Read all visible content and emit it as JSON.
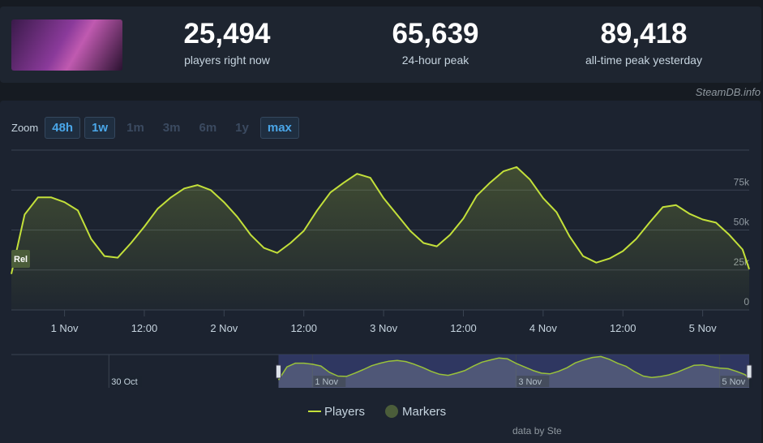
{
  "header": {
    "stats": [
      {
        "value": "25,494",
        "label": "players right now"
      },
      {
        "value": "65,639",
        "label": "24-hour peak"
      },
      {
        "value": "89,418",
        "label": "all-time peak yesterday"
      }
    ],
    "watermark": "SteamDB.info"
  },
  "zoom": {
    "label": "Zoom",
    "buttons": [
      {
        "label": "48h",
        "enabled": true
      },
      {
        "label": "1w",
        "enabled": true
      },
      {
        "label": "1m",
        "enabled": false
      },
      {
        "label": "3m",
        "enabled": false
      },
      {
        "label": "6m",
        "enabled": false
      },
      {
        "label": "1y",
        "enabled": false
      },
      {
        "label": "max",
        "enabled": true
      }
    ]
  },
  "chart_data": [
    {
      "type": "line",
      "x": [
        "31 Oct 16:00",
        "31 Oct 18:00",
        "31 Oct 20:00",
        "31 Oct 22:00",
        "1 Nov 00:00",
        "1 Nov 02:00",
        "1 Nov 04:00",
        "1 Nov 06:00",
        "1 Nov 08:00",
        "1 Nov 10:00",
        "1 Nov 12:00",
        "1 Nov 14:00",
        "1 Nov 16:00",
        "1 Nov 18:00",
        "1 Nov 20:00",
        "1 Nov 22:00",
        "2 Nov 00:00",
        "2 Nov 02:00",
        "2 Nov 04:00",
        "2 Nov 06:00",
        "2 Nov 08:00",
        "2 Nov 10:00",
        "2 Nov 12:00",
        "2 Nov 14:00",
        "2 Nov 16:00",
        "2 Nov 18:00",
        "2 Nov 20:00",
        "2 Nov 22:00",
        "3 Nov 00:00",
        "3 Nov 02:00",
        "3 Nov 04:00",
        "3 Nov 06:00",
        "3 Nov 08:00",
        "3 Nov 10:00",
        "3 Nov 12:00",
        "3 Nov 14:00",
        "3 Nov 16:00",
        "3 Nov 18:00",
        "3 Nov 20:00",
        "3 Nov 22:00",
        "4 Nov 00:00",
        "4 Nov 02:00",
        "4 Nov 04:00",
        "4 Nov 06:00",
        "4 Nov 08:00",
        "4 Nov 10:00",
        "4 Nov 12:00",
        "4 Nov 14:00",
        "4 Nov 16:00",
        "4 Nov 18:00",
        "4 Nov 20:00",
        "4 Nov 22:00",
        "5 Nov 00:00",
        "5 Nov 02:00",
        "5 Nov 04:00",
        "5 Nov 06:00",
        "5 Nov 07:00"
      ],
      "series": [
        {
          "name": "Players",
          "color": "#c3e03a",
          "values": [
            22500,
            59700,
            70400,
            70400,
            67400,
            62300,
            44400,
            33700,
            32700,
            41900,
            52100,
            63300,
            70400,
            76000,
            78100,
            75000,
            67400,
            58200,
            47000,
            38800,
            35700,
            41900,
            49500,
            62300,
            73500,
            79600,
            85200,
            82700,
            69900,
            59700,
            49500,
            41900,
            39800,
            47000,
            57200,
            71400,
            79600,
            86700,
            89400,
            81600,
            69900,
            61200,
            45900,
            33700,
            29600,
            32200,
            36800,
            44400,
            54600,
            64300,
            65600,
            60200,
            56600,
            54600,
            47000,
            37800,
            25500
          ]
        }
      ],
      "markers": {
        "name": "Markers",
        "color": "#4b5d3a",
        "points": [
          {
            "x": "31 Oct 16:00",
            "text": "Rel"
          }
        ]
      },
      "xlim": [
        "31 Oct 16:00",
        "5 Nov 07:00"
      ],
      "xticks": [
        {
          "value": "1 Nov 00:00",
          "label": "1 Nov"
        },
        {
          "value": "1 Nov 12:00",
          "label": "12:00"
        },
        {
          "value": "2 Nov 00:00",
          "label": "2 Nov"
        },
        {
          "value": "2 Nov 12:00",
          "label": "12:00"
        },
        {
          "value": "3 Nov 00:00",
          "label": "3 Nov"
        },
        {
          "value": "3 Nov 12:00",
          "label": "12:00"
        },
        {
          "value": "4 Nov 00:00",
          "label": "4 Nov"
        },
        {
          "value": "4 Nov 12:00",
          "label": "12:00"
        },
        {
          "value": "5 Nov 00:00",
          "label": "5 Nov"
        }
      ],
      "ylim": [
        0,
        100000
      ],
      "yticks": [
        0,
        {
          "value": 25000,
          "label": "25k"
        },
        {
          "value": 50000,
          "label": "50k"
        },
        {
          "value": 75000,
          "label": "75k"
        }
      ],
      "grid": true
    },
    {
      "type": "navigator",
      "xlim": [
        "29 Oct 01:00",
        "5 Nov 07:00"
      ],
      "xticks": [
        {
          "value": "30 Oct 00:00",
          "label": "30 Oct"
        },
        {
          "value": "1 Nov 00:00",
          "label": "1 Nov"
        },
        {
          "value": "3 Nov 00:00",
          "label": "3 Nov"
        },
        {
          "value": "5 Nov 00:00",
          "label": "5 Nov"
        }
      ],
      "ylim": [
        0,
        95000
      ]
    }
  ],
  "footer": "data by Ste"
}
